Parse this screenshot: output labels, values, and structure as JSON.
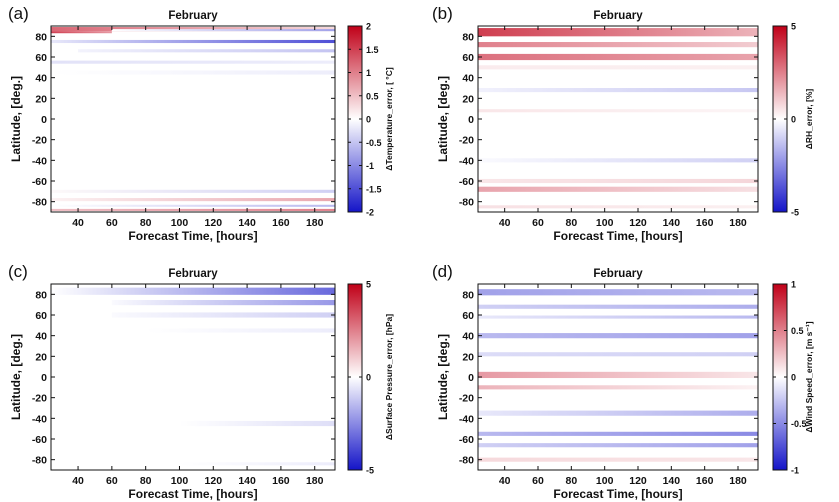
{
  "chart_data": [
    {
      "type": "heatmap",
      "panel": "(a)",
      "title": "February",
      "xlabel": "Forecast Time, [hours]",
      "ylabel": "Latitude, [deg.]",
      "colorbar_label": "ΔTemperature_error, [ °C]",
      "xlim": [
        24,
        192
      ],
      "ylim": [
        -90,
        90
      ],
      "xticks": [
        "40",
        "60",
        "80",
        "100",
        "120",
        "140",
        "160",
        "180"
      ],
      "yticks": [
        "80",
        "60",
        "40",
        "20",
        "0",
        "-20",
        "-40",
        "-60",
        "-80"
      ],
      "clim": [
        -2,
        2
      ],
      "cticks": [
        "2",
        "1.5",
        "1",
        "0.5",
        "0",
        "-0.5",
        "-1",
        "-1.5",
        "-2"
      ],
      "bands": [
        {
          "lat": 87,
          "width": 4,
          "x0": 24,
          "x1": 192,
          "v0": 1.2,
          "v1": 0.3
        },
        {
          "lat": 84,
          "width": 2,
          "x0": 24,
          "x1": 60,
          "v0": 1.5,
          "v1": 0.8
        },
        {
          "lat": 86,
          "width": 2,
          "x0": 60,
          "x1": 192,
          "v0": 0.0,
          "v1": -0.8
        },
        {
          "lat": 75,
          "width": 3,
          "x0": 24,
          "x1": 192,
          "v0": -0.2,
          "v1": -1.5
        },
        {
          "lat": 66,
          "width": 3,
          "x0": 40,
          "x1": 192,
          "v0": -0.1,
          "v1": -0.5
        },
        {
          "lat": 55,
          "width": 3,
          "x0": 24,
          "x1": 192,
          "v0": -0.25,
          "v1": -0.15
        },
        {
          "lat": 45,
          "width": 4,
          "x0": 24,
          "x1": 192,
          "v0": 0.0,
          "v1": -0.15
        },
        {
          "lat": -70,
          "width": 3,
          "x0": 24,
          "x1": 192,
          "v0": 0.05,
          "v1": -0.4
        },
        {
          "lat": -78,
          "width": 3,
          "x0": 24,
          "x1": 192,
          "v0": 0.1,
          "v1": 0.7
        },
        {
          "lat": -84,
          "width": 2,
          "x0": 24,
          "x1": 192,
          "v0": 0.0,
          "v1": -0.6
        },
        {
          "lat": -88,
          "width": 2,
          "x0": 24,
          "x1": 192,
          "v0": 0.5,
          "v1": 1.0
        }
      ]
    },
    {
      "type": "heatmap",
      "panel": "(b)",
      "title": "February",
      "xlabel": "Forecast Time, [hours]",
      "ylabel": "Latitude, [deg.]",
      "colorbar_label": "ΔRH_error, [%]",
      "xlim": [
        24,
        192
      ],
      "ylim": [
        -90,
        90
      ],
      "xticks": [
        "40",
        "60",
        "80",
        "100",
        "120",
        "140",
        "160",
        "180"
      ],
      "yticks": [
        "80",
        "60",
        "40",
        "20",
        "0",
        "-20",
        "-40",
        "-60",
        "-80"
      ],
      "clim": [
        -5,
        5
      ],
      "cticks": [
        "5",
        "0",
        "-5"
      ],
      "bands": [
        {
          "lat": 84,
          "width": 8,
          "x0": 24,
          "x1": 192,
          "v0": 3.8,
          "v1": 1.5
        },
        {
          "lat": 72,
          "width": 5,
          "x0": 24,
          "x1": 192,
          "v0": 2.5,
          "v1": 1.0
        },
        {
          "lat": 60,
          "width": 6,
          "x0": 24,
          "x1": 192,
          "v0": 2.8,
          "v1": 1.8
        },
        {
          "lat": 50,
          "width": 4,
          "x0": 24,
          "x1": 192,
          "v0": 0.4,
          "v1": 0.3
        },
        {
          "lat": 28,
          "width": 4,
          "x0": 24,
          "x1": 192,
          "v0": -0.3,
          "v1": -1.2
        },
        {
          "lat": 8,
          "width": 3,
          "x0": 24,
          "x1": 192,
          "v0": 0.5,
          "v1": 0.2
        },
        {
          "lat": -40,
          "width": 4,
          "x0": 24,
          "x1": 192,
          "v0": -0.1,
          "v1": -1.0
        },
        {
          "lat": -60,
          "width": 4,
          "x0": 24,
          "x1": 192,
          "v0": 0.5,
          "v1": 0.8
        },
        {
          "lat": -68,
          "width": 5,
          "x0": 24,
          "x1": 192,
          "v0": 1.8,
          "v1": 0.6
        },
        {
          "lat": -85,
          "width": 3,
          "x0": 24,
          "x1": 192,
          "v0": 0.6,
          "v1": 0.3
        }
      ]
    },
    {
      "type": "heatmap",
      "panel": "(c)",
      "title": "February",
      "xlabel": "Forecast Time, [hours]",
      "ylabel": "Latitude, [deg.]",
      "colorbar_label": "ΔSurface Pressure_error, [hPa]",
      "xlim": [
        24,
        192
      ],
      "ylim": [
        -90,
        90
      ],
      "xticks": [
        "40",
        "60",
        "80",
        "100",
        "120",
        "140",
        "160",
        "180"
      ],
      "yticks": [
        "80",
        "60",
        "40",
        "20",
        "0",
        "-20",
        "-40",
        "-60",
        "-80"
      ],
      "clim": [
        -5,
        5
      ],
      "cticks": [
        "5",
        "0",
        "-5"
      ],
      "bands": [
        {
          "lat": 83,
          "width": 7,
          "x0": 24,
          "x1": 192,
          "v0": 0.0,
          "v1": -3.2
        },
        {
          "lat": 72,
          "width": 5,
          "x0": 60,
          "x1": 192,
          "v0": -0.1,
          "v1": -2.2
        },
        {
          "lat": 60,
          "width": 5,
          "x0": 60,
          "x1": 192,
          "v0": -0.1,
          "v1": -1.0
        },
        {
          "lat": 45,
          "width": 4,
          "x0": 80,
          "x1": 192,
          "v0": 0.0,
          "v1": -0.4
        },
        {
          "lat": -45,
          "width": 5,
          "x0": 100,
          "x1": 192,
          "v0": 0.0,
          "v1": -0.7
        },
        {
          "lat": -84,
          "width": 3,
          "x0": 100,
          "x1": 192,
          "v0": 0.0,
          "v1": -0.4
        }
      ]
    },
    {
      "type": "heatmap",
      "panel": "(d)",
      "title": "February",
      "xlabel": "Forecast Time, [hours]",
      "ylabel": "Latitude, [deg.]",
      "colorbar_label": "ΔWind Speed_error, [m s⁻¹]",
      "xlim": [
        24,
        192
      ],
      "ylim": [
        -90,
        90
      ],
      "xticks": [
        "40",
        "60",
        "80",
        "100",
        "120",
        "140",
        "160",
        "180"
      ],
      "yticks": [
        "80",
        "60",
        "40",
        "20",
        "0",
        "-20",
        "-40",
        "-60",
        "-80"
      ],
      "clim": [
        -1,
        1
      ],
      "cticks": [
        "1",
        "0.5",
        "0",
        "-0.5",
        "-1"
      ],
      "bands": [
        {
          "lat": 82,
          "width": 6,
          "x0": 24,
          "x1": 192,
          "v0": -0.4,
          "v1": -0.3
        },
        {
          "lat": 68,
          "width": 4,
          "x0": 24,
          "x1": 192,
          "v0": -0.2,
          "v1": -0.35
        },
        {
          "lat": 58,
          "width": 3,
          "x0": 24,
          "x1": 192,
          "v0": -0.1,
          "v1": -0.3
        },
        {
          "lat": 40,
          "width": 5,
          "x0": 24,
          "x1": 192,
          "v0": -0.3,
          "v1": -0.4
        },
        {
          "lat": 22,
          "width": 4,
          "x0": 24,
          "x1": 192,
          "v0": -0.15,
          "v1": -0.2
        },
        {
          "lat": 2,
          "width": 6,
          "x0": 24,
          "x1": 192,
          "v0": 0.4,
          "v1": 0.1
        },
        {
          "lat": -10,
          "width": 4,
          "x0": 24,
          "x1": 192,
          "v0": 0.3,
          "v1": 0.05
        },
        {
          "lat": -35,
          "width": 5,
          "x0": 24,
          "x1": 192,
          "v0": -0.1,
          "v1": -0.35
        },
        {
          "lat": -55,
          "width": 4,
          "x0": 24,
          "x1": 192,
          "v0": -0.3,
          "v1": -0.5
        },
        {
          "lat": -66,
          "width": 4,
          "x0": 24,
          "x1": 192,
          "v0": -0.2,
          "v1": -0.4
        },
        {
          "lat": -80,
          "width": 4,
          "x0": 24,
          "x1": 192,
          "v0": 0.15,
          "v1": 0.1
        }
      ]
    }
  ],
  "colors": {
    "max": "#c00018",
    "mid": "#ffffff",
    "min": "#1414c8"
  }
}
